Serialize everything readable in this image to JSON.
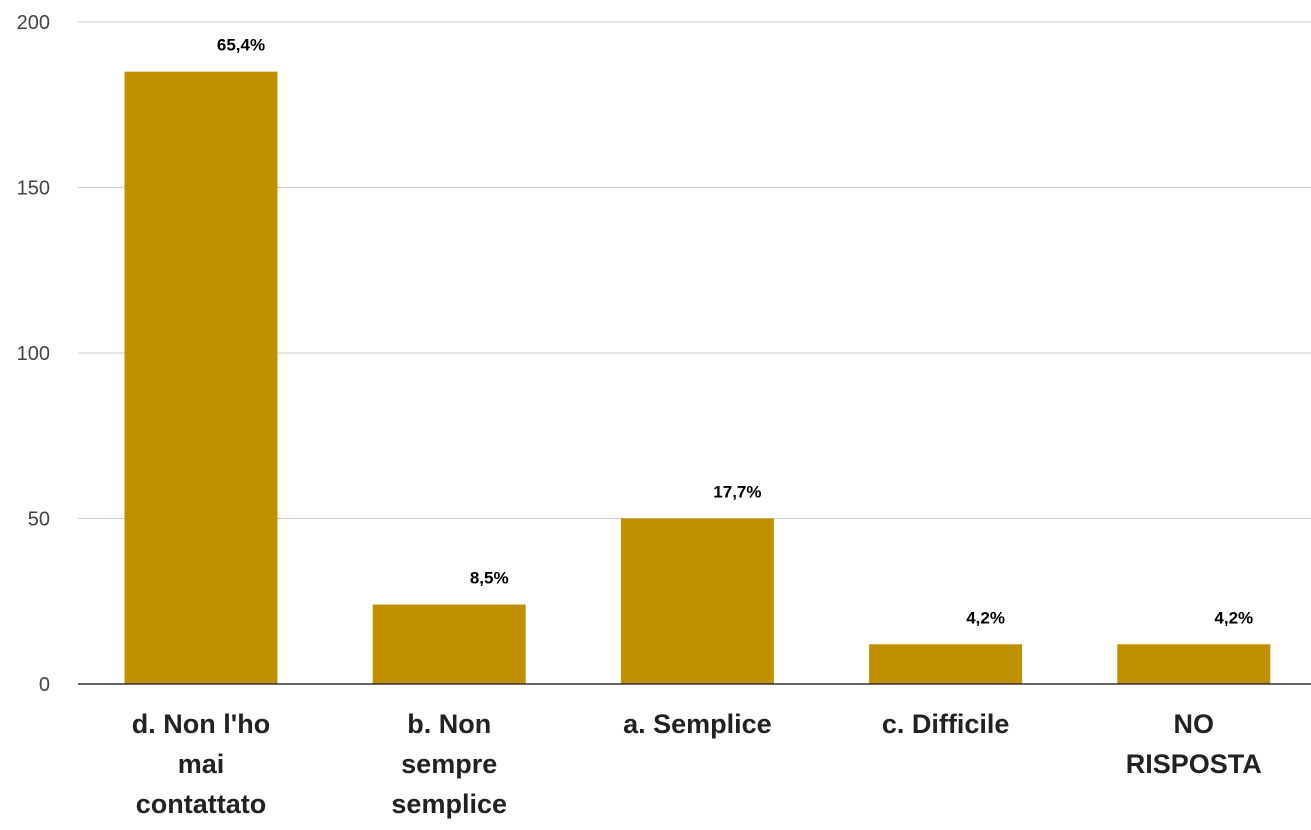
{
  "chart_data": {
    "type": "bar",
    "categories": [
      [
        "d.  Non l'ho",
        "mai",
        "contattato"
      ],
      [
        "b.  Non",
        "sempre",
        "semplice"
      ],
      [
        "a.  Semplice"
      ],
      [
        "c.  Difficile"
      ],
      [
        "NO",
        "RISPOSTA"
      ]
    ],
    "values": [
      185,
      24,
      50,
      12,
      12
    ],
    "data_labels": [
      "65,4%",
      "8,5%",
      "17,7%",
      "4,2%",
      "4,2%"
    ],
    "yticks": [
      "0",
      "50",
      "100",
      "150",
      "200"
    ],
    "ylim": [
      0,
      200
    ],
    "grid": true,
    "bar_color": "#bf9000"
  }
}
